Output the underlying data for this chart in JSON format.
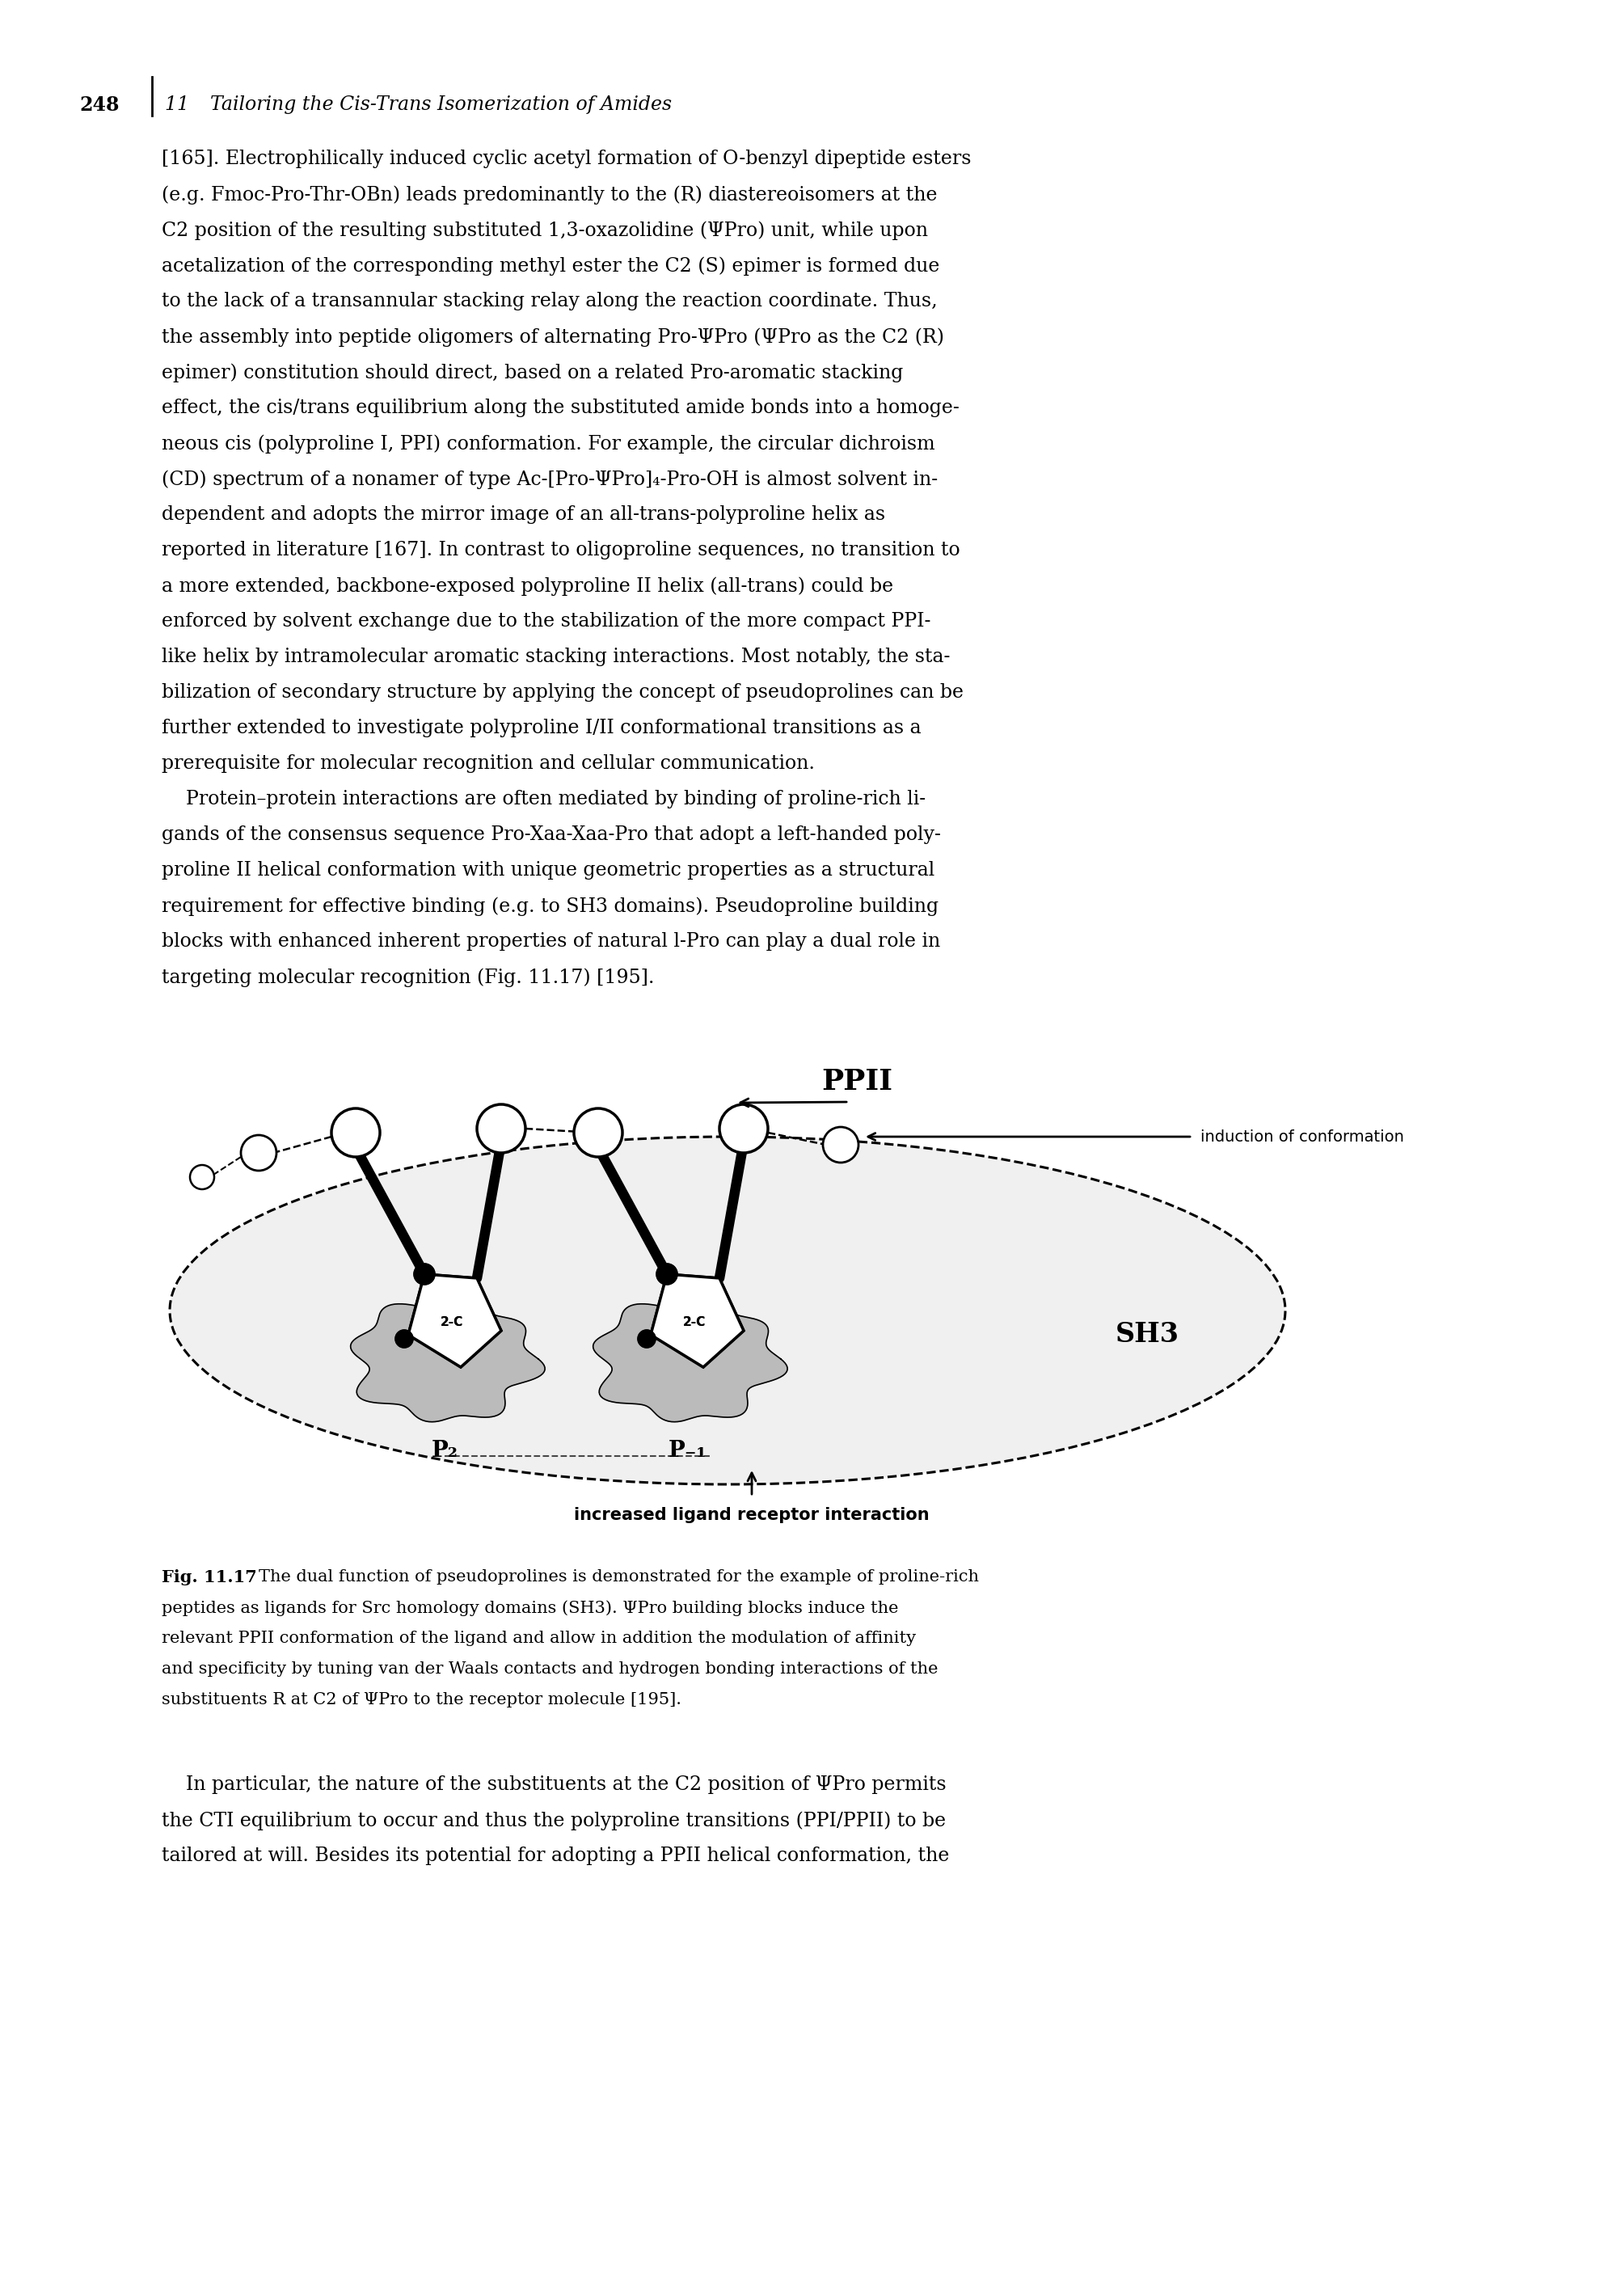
{
  "page_number": "248",
  "chapter_number": "11",
  "chapter_title": "Tailoring the Cis-Trans Isomerization of Amides",
  "body_para1": [
    "[165]. Electrophilically induced cyclic acetyl formation of O-benzyl dipeptide esters",
    "(e.g. Fmoc-Pro-Thr-OBn) leads predominantly to the (R) diastereoisomers at the",
    "C2 position of the resulting substituted 1,3-oxazolidine (ΨPro) unit, while upon",
    "acetalization of the corresponding methyl ester the C2 (S) epimer is formed due",
    "to the lack of a transannular stacking relay along the reaction coordinate. Thus,",
    "the assembly into peptide oligomers of alternating Pro-ΨPro (ΨPro as the C2 (R)",
    "epimer) constitution should direct, based on a related Pro-aromatic stacking",
    "effect, the cis/trans equilibrium along the substituted amide bonds into a homoge-",
    "neous cis (polyproline I, PPI) conformation. For example, the circular dichroism",
    "(CD) spectrum of a nonamer of type Ac-[Pro-ΨPro]₄-Pro-OH is almost solvent in-",
    "dependent and adopts the mirror image of an all-trans-polyproline helix as",
    "reported in literature [167]. In contrast to oligoproline sequences, no transition to",
    "a more extended, backbone-exposed polyproline II helix (all-trans) could be",
    "enforced by solvent exchange due to the stabilization of the more compact PPI-",
    "like helix by intramolecular aromatic stacking interactions. Most notably, the sta-",
    "bilization of secondary structure by applying the concept of pseudoprolines can be",
    "further extended to investigate polyproline I/II conformational transitions as a",
    "prerequisite for molecular recognition and cellular communication."
  ],
  "body_para2_indent": "    Protein–protein interactions are often mediated by binding of proline-rich li-",
  "body_para2": [
    "gands of the consensus sequence Pro-Xaa-Xaa-Pro that adopt a left-handed poly-",
    "proline II helical conformation with unique geometric properties as a structural",
    "requirement for effective binding (e.g. to SH3 domains). Pseudoproline building",
    "blocks with enhanced inherent properties of natural l-Pro can play a dual role in",
    "targeting molecular recognition (Fig. 11.17) [195]."
  ],
  "body_para3_indent": "    In particular, the nature of the substituents at the C2 position of ΨPro permits",
  "body_para3": [
    "the CTI equilibrium to occur and thus the polyproline transitions (PPI/PPII) to be",
    "tailored at will. Besides its potential for adopting a PPII helical conformation, the"
  ],
  "fig_caption_bold": "Fig. 11.17",
  "fig_caption_rest": "  The dual function of pseudoprolines is demonstrated for the example of proline-rich peptides as ligands for Src homology domains (SH3). ΨPro building blocks induce the relevant PPII conformation of the ligand and allow in addition the modulation of affinity and specificity by tuning van der Waals contacts and hydrogen bonding interactions of the substituents R at C2 of ΨPro to the receptor molecule [195].",
  "label_ppii": "PPII",
  "label_sh3": "SH3",
  "label_induction": "induction of conformation",
  "label_ligand": "increased ligand receptor interaction",
  "background_color": "#ffffff"
}
